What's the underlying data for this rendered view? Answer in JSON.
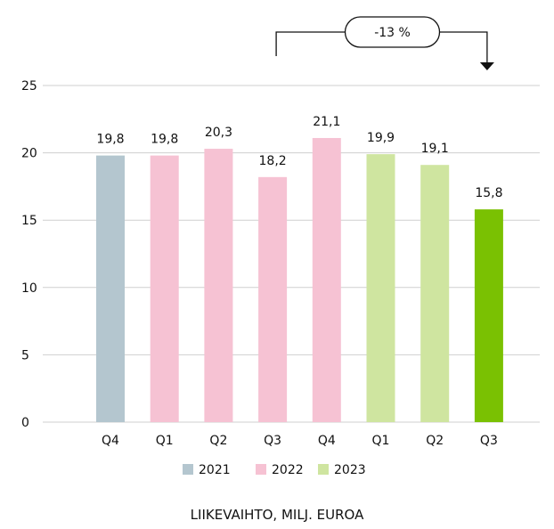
{
  "chart_data": {
    "type": "bar",
    "title": "LIIKEVAIHTO, MILJ. EUROA",
    "xlabel": "",
    "ylabel": "",
    "categories": [
      "Q4",
      "Q1",
      "Q2",
      "Q3",
      "Q4",
      "Q1",
      "Q2",
      "Q3"
    ],
    "category_year": [
      "2021",
      "2022",
      "2022",
      "2022",
      "2022",
      "2023",
      "2023",
      "2023"
    ],
    "values": [
      19.8,
      19.8,
      20.3,
      18.2,
      21.1,
      19.9,
      19.1,
      15.8
    ],
    "value_labels": [
      "19,8",
      "19,8",
      "20,3",
      "18,2",
      "21,1",
      "19,9",
      "19,1",
      "15,8"
    ],
    "ylim": [
      0,
      25
    ],
    "yticks": [
      0,
      5,
      10,
      15,
      20,
      25
    ],
    "grid": true,
    "legend": {
      "position": "bottom",
      "items": [
        {
          "name": "2021",
          "color": "#b4c6cf"
        },
        {
          "name": "2022",
          "color": "#f6c2d3"
        },
        {
          "name": "2023",
          "color": "#cfe5a0"
        }
      ]
    },
    "highlight": {
      "index": 7,
      "color": "#7ac102"
    },
    "annotation": {
      "text": "-13 %",
      "from_index": 3,
      "to_index": 7
    }
  }
}
